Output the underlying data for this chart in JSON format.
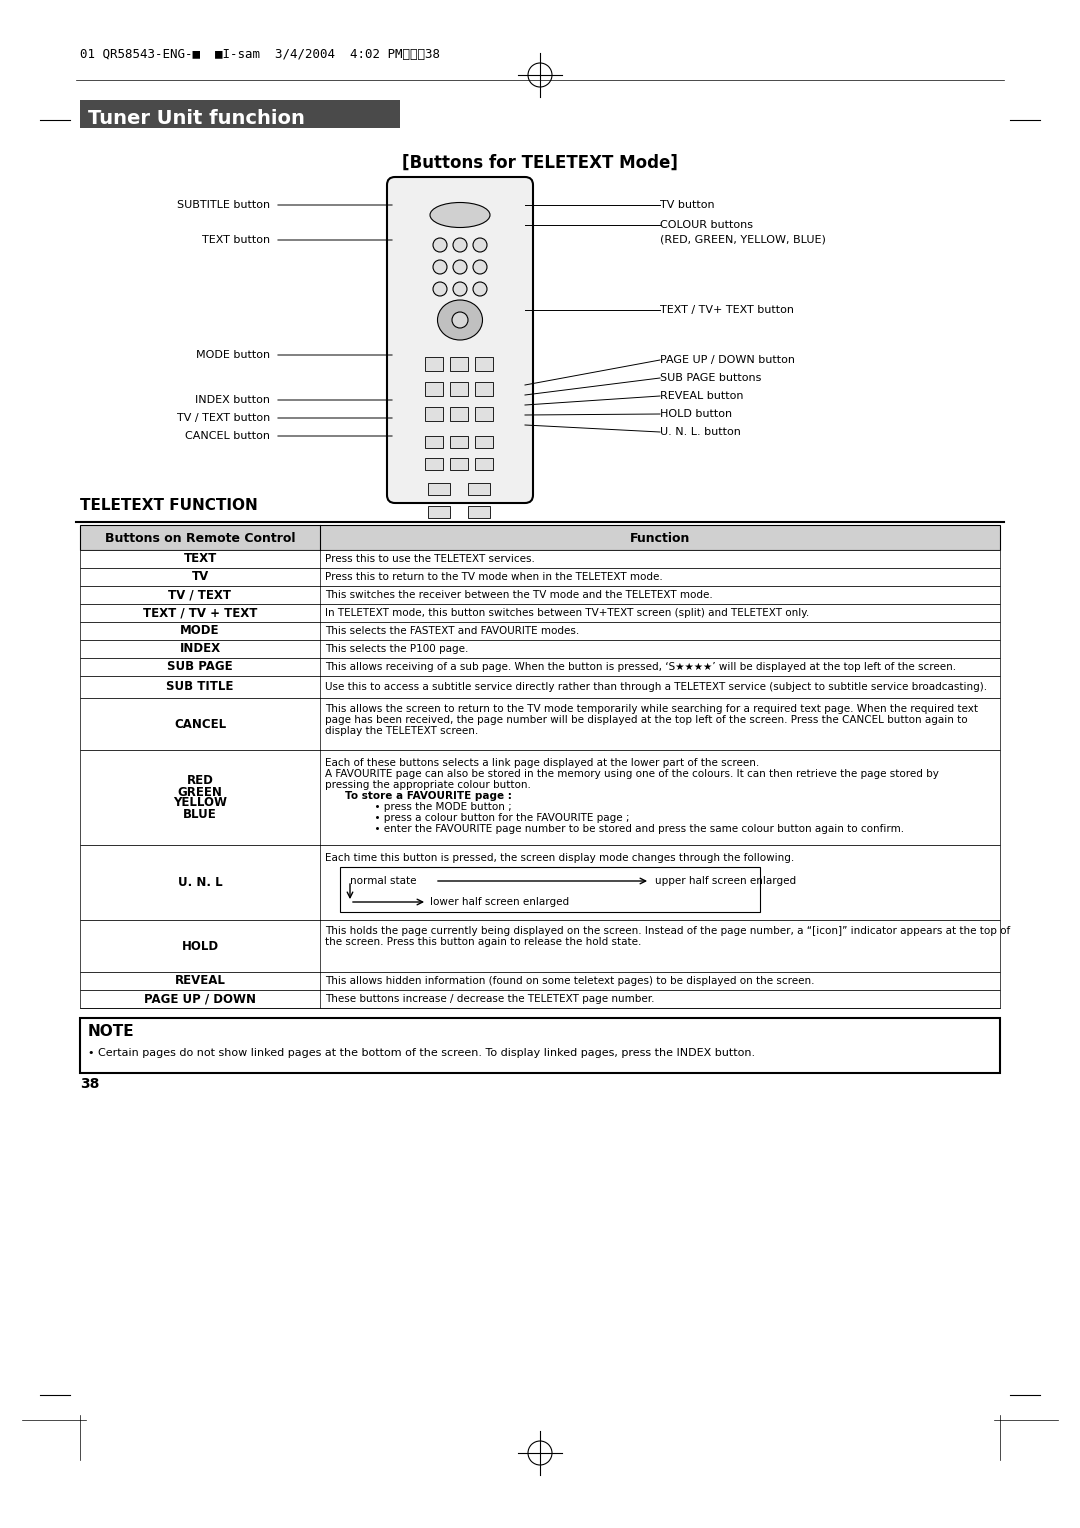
{
  "page_header": "01 QR58543-ENG-■  ■I-sam  3/4/2004  4:02 PMペーコ38",
  "section_title": "Tuner Unit funchion",
  "section_title_bg": "#4a4a4a",
  "section_title_color": "#ffffff",
  "subsection_title": "[Buttons for TELETEXT Mode]",
  "teletext_function_title": "TELETEXT FUNCTION",
  "table_header": [
    "Buttons on Remote Control",
    "Function"
  ],
  "table_rows": [
    [
      "TEXT",
      "Press this to use the TELETEXT services."
    ],
    [
      "TV",
      "Press this to return to the TV mode when in the TELETEXT mode."
    ],
    [
      "TV / TEXT",
      "This switches the receiver between the TV mode and the TELETEXT mode."
    ],
    [
      "TEXT / TV + TEXT",
      "In TELETEXT mode, this button switches between TV+TEXT screen (split) and TELETEXT only."
    ],
    [
      "MODE",
      "This selects the FASTEXT and FAVOURITE modes."
    ],
    [
      "INDEX",
      "This selects the P100 page."
    ],
    [
      "SUB PAGE",
      "This allows receiving of a sub page. When the button is pressed, ‘S★★★★’ will be displayed at the top left of the screen."
    ],
    [
      "SUB TITLE",
      "Use this to access a subtitle service directly rather than through a TELETEXT service (subject to subtitle service broadcasting)."
    ],
    [
      "CANCEL",
      "This allows the screen to return to the TV mode temporarily while searching for a required text page. When the required text\npage has been received, the page number will be displayed at the top left of the screen. Press the CANCEL button again to\ndisplay the TELETEXT screen."
    ],
    [
      "RED\nGREEN\nYELLOW\nBLUE",
      "Each of these buttons selects a link page displayed at the lower part of the screen.\nA FAVOURITE page can also be stored in the memory using one of the colours. It can then retrieve the page stored by\npressing the appropriate colour button.\n    To store a FAVOURITE page :\n      • press the MODE button ;\n      • press a colour button for the FAVOURITE page ;\n      • enter the FAVOURITE page number to be stored and press the same colour button again to confirm."
    ],
    [
      "U. N. L",
      "Each time this button is pressed, the screen display mode changes through the following.\n[UNL_DIAGRAM]"
    ],
    [
      "HOLD",
      "This holds the page currently being displayed on the screen. Instead of the page number, a “[icon]” indicator appears at the top of\nthe screen. Press this button again to release the hold state."
    ],
    [
      "REVEAL",
      "This allows hidden information (found on some teletext pages) to be displayed on the screen."
    ],
    [
      "PAGE UP / DOWN",
      "These buttons increase / decrease the TELETEXT page number."
    ]
  ],
  "note_title": "NOTE",
  "note_text": "• Certain pages do not show linked pages at the bottom of the screen. To display linked pages, press the INDEX button.",
  "page_number": "38",
  "remote_labels_left": [
    "SUBTITLE button",
    "TEXT button",
    "",
    "",
    "MODE button",
    "",
    "INDEX button",
    "TV / TEXT button",
    "CANCEL button"
  ],
  "remote_labels_right": [
    "TV button",
    "COLOUR buttons\n(RED, GREEN, YELLOW, BLUE)",
    "",
    "TEXT / TV+ TEXT button",
    "",
    "PAGE UP / DOWN button",
    "SUB PAGE buttons",
    "REVEAL button",
    "HOLD button",
    "U. N. L. button"
  ]
}
